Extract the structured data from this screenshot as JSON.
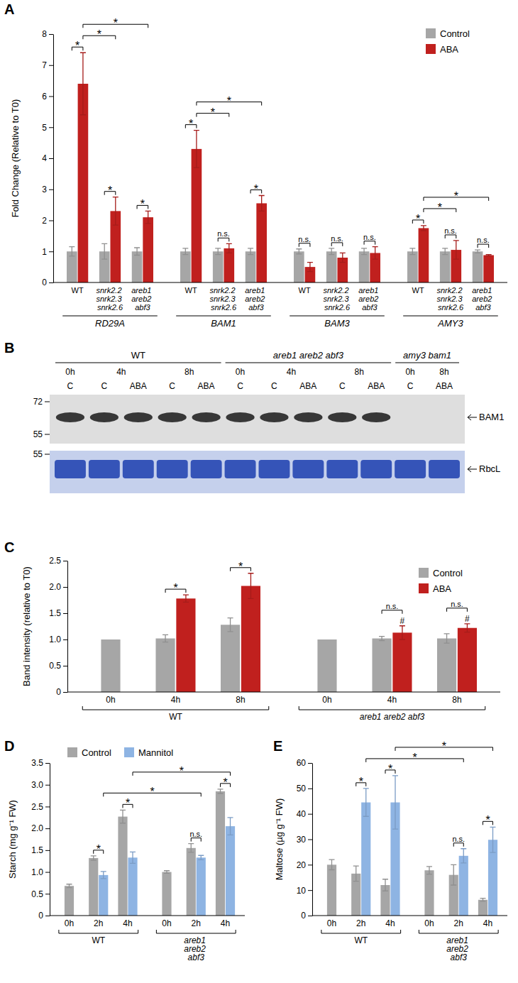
{
  "chart_data": [
    {
      "type": "bar",
      "title": "A",
      "ylabel": "Fold Change (Relative to T0)",
      "categories": [
        "WT",
        "snrk2.2 snrk2.3 snrk2.6",
        "areb1 areb2 abf3",
        "WT",
        "snrk2.2 snrk2.3 snrk2.6",
        "areb1 areb2 abf3",
        "WT",
        "snrk2.2 snrk2.3 snrk2.6",
        "areb1 areb2 abf3",
        "WT",
        "snrk2.2 snrk2.3 snrk2.6",
        "areb1 areb2 abf3"
      ],
      "groups": [
        "RD29A",
        "BAM1",
        "BAM3",
        "AMY3"
      ],
      "series": [
        {
          "name": "Control",
          "color": "#a6a6a6",
          "values": [
            1,
            1,
            1,
            1,
            1,
            1,
            1,
            1,
            1,
            1,
            1,
            1
          ],
          "errors": [
            0.15,
            0.25,
            0.12,
            0.1,
            0.1,
            0.1,
            0.08,
            0.1,
            0.1,
            0.1,
            0.1,
            0.05
          ]
        },
        {
          "name": "ABA",
          "color": "#c0201e",
          "values": [
            6.4,
            2.3,
            2.1,
            4.3,
            1.1,
            2.55,
            0.5,
            0.8,
            0.95,
            1.75,
            1.05,
            0.88
          ],
          "errors": [
            1.0,
            0.45,
            0.2,
            0.6,
            0.15,
            0.25,
            0.15,
            0.15,
            0.2,
            0.08,
            0.3,
            0.02
          ]
        }
      ],
      "ylim": [
        0,
        8
      ],
      "yticks": [
        0,
        1,
        2,
        3,
        4,
        5,
        6,
        7,
        8
      ],
      "legend": "upper right",
      "annotations": [
        {
          "text": "*",
          "from": [
            0,
            0
          ],
          "to": [
            0,
            1
          ]
        },
        {
          "text": "*",
          "from": [
            1,
            0
          ],
          "to": [
            1,
            1
          ]
        },
        {
          "text": "*",
          "from": [
            2,
            0
          ],
          "to": [
            2,
            1
          ]
        },
        {
          "text": "*",
          "from": [
            0,
            1
          ],
          "to": [
            1,
            1
          ]
        },
        {
          "text": "*",
          "from": [
            0,
            1
          ],
          "to": [
            2,
            1
          ]
        },
        {
          "text": "*",
          "from": [
            3,
            0
          ],
          "to": [
            3,
            1
          ]
        },
        {
          "text": "n.s.",
          "from": [
            4,
            0
          ],
          "to": [
            4,
            1
          ]
        },
        {
          "text": "*",
          "from": [
            5,
            0
          ],
          "to": [
            5,
            1
          ]
        },
        {
          "text": "*",
          "from": [
            3,
            1
          ],
          "to": [
            4,
            1
          ]
        },
        {
          "text": "*",
          "from": [
            3,
            1
          ],
          "to": [
            5,
            1
          ]
        },
        {
          "text": "n.s.",
          "from": [
            6,
            0
          ],
          "to": [
            6,
            1
          ]
        },
        {
          "text": "n.s.",
          "from": [
            7,
            0
          ],
          "to": [
            7,
            1
          ]
        },
        {
          "text": "n.s.",
          "from": [
            8,
            0
          ],
          "to": [
            8,
            1
          ]
        },
        {
          "text": "*",
          "from": [
            9,
            0
          ],
          "to": [
            9,
            1
          ]
        },
        {
          "text": "n.s.",
          "from": [
            10,
            0
          ],
          "to": [
            10,
            1
          ]
        },
        {
          "text": "n.s.",
          "from": [
            11,
            0
          ],
          "to": [
            11,
            1
          ]
        },
        {
          "text": "*",
          "from": [
            9,
            1
          ],
          "to": [
            10,
            1
          ]
        },
        {
          "text": "*",
          "from": [
            9,
            1
          ],
          "to": [
            11,
            1
          ]
        }
      ]
    },
    {
      "type": "bar",
      "title": "C",
      "ylabel": "Band intensity (relative to T0)",
      "categories": [
        "0h",
        "4h",
        "8h",
        "0h",
        "4h",
        "8h"
      ],
      "groups": [
        "WT",
        "areb1 areb2 abf3"
      ],
      "series": [
        {
          "name": "Control",
          "color": "#a6a6a6",
          "values": [
            1,
            1.02,
            1.28,
            1,
            1.02,
            1.02
          ],
          "errors": [
            null,
            0.07,
            0.13,
            null,
            0.04,
            0.09
          ]
        },
        {
          "name": "ABA",
          "color": "#c0201e",
          "values": [
            null,
            1.78,
            2.02,
            null,
            1.13,
            1.22
          ],
          "errors": [
            null,
            0.07,
            0.24,
            null,
            0.13,
            0.08
          ]
        }
      ],
      "ylim": [
        0,
        2.5
      ],
      "yticks": [
        0,
        0.5,
        {
          "value": 1,
          "label": "1.0"
        },
        1.5,
        {
          "value": 2,
          "label": "2.0"
        },
        2.5
      ],
      "legend": "upper right",
      "annotations": [
        {
          "text": "*",
          "from": [
            1,
            0
          ],
          "to": [
            1,
            1
          ]
        },
        {
          "text": "*",
          "from": [
            2,
            0
          ],
          "to": [
            2,
            1
          ]
        },
        {
          "text": "n.s.",
          "from": [
            4,
            0
          ],
          "to": [
            4,
            1
          ]
        },
        {
          "text": "n.s.",
          "from": [
            5,
            0
          ],
          "to": [
            5,
            1
          ]
        },
        {
          "text": "#",
          "at": [
            4,
            1
          ]
        },
        {
          "text": "#",
          "at": [
            5,
            1
          ]
        }
      ]
    },
    {
      "type": "bar",
      "title": "D",
      "ylabel": "Starch (mg g⁻¹ FW)",
      "categories": [
        "0h",
        "2h",
        "4h",
        "0h",
        "2h",
        "4h"
      ],
      "groups": [
        "WT",
        "areb1 areb2 abf3"
      ],
      "series": [
        {
          "name": "Control",
          "color": "#a6a6a6",
          "values": [
            0.68,
            1.32,
            2.27,
            1.0,
            1.55,
            2.85
          ],
          "errors": [
            0.04,
            0.05,
            0.15,
            0.03,
            0.1,
            0.05
          ]
        },
        {
          "name": "Mannitol",
          "color": "#8eb4e3",
          "values": [
            null,
            0.93,
            1.33,
            null,
            1.33,
            2.05
          ],
          "errors": [
            null,
            0.08,
            0.13,
            null,
            0.05,
            0.2
          ]
        }
      ],
      "ylim": [
        0,
        3.5
      ],
      "yticks": [
        0,
        0.5,
        {
          "value": 1,
          "label": "1.0"
        },
        1.5,
        {
          "value": 2,
          "label": "2.0"
        },
        2.5,
        {
          "value": 3,
          "label": "3.0"
        },
        3.5
      ],
      "legend": "upper left",
      "annotations": [
        {
          "text": "*",
          "from": [
            1,
            0
          ],
          "to": [
            1,
            1
          ]
        },
        {
          "text": "*",
          "from": [
            2,
            0
          ],
          "to": [
            2,
            1
          ]
        },
        {
          "text": "n.s.",
          "from": [
            4,
            0
          ],
          "to": [
            4,
            1
          ]
        },
        {
          "text": "*",
          "from": [
            5,
            0
          ],
          "to": [
            5,
            1
          ]
        },
        {
          "text": "*",
          "from": [
            1,
            1
          ],
          "to": [
            4,
            1
          ]
        },
        {
          "text": "*",
          "from": [
            2,
            1
          ],
          "to": [
            5,
            1
          ]
        }
      ]
    },
    {
      "type": "bar",
      "title": "E",
      "ylabel": "Maltose (µg g⁻¹ FW)",
      "categories": [
        "0h",
        "2h",
        "4h",
        "0h",
        "2h",
        "4h"
      ],
      "groups": [
        "WT",
        "areb1 areb2 abf3"
      ],
      "series": [
        {
          "name": "Control",
          "color": "#a6a6a6",
          "values": [
            20,
            16.5,
            12,
            17.8,
            16,
            6.2
          ],
          "errors": [
            2,
            3,
            2.3,
            1.5,
            4,
            0.6
          ]
        },
        {
          "name": "Mannitol",
          "color": "#8eb4e3",
          "values": [
            null,
            44.5,
            44.5,
            null,
            23.5,
            29.8
          ],
          "errors": [
            null,
            5.5,
            10.5,
            null,
            2.8,
            5
          ]
        }
      ],
      "ylim": [
        0,
        60
      ],
      "yticks": [
        0,
        10,
        20,
        30,
        40,
        50,
        60
      ],
      "annotations": [
        {
          "text": "*",
          "from": [
            1,
            0
          ],
          "to": [
            1,
            1
          ]
        },
        {
          "text": "*",
          "from": [
            2,
            0
          ],
          "to": [
            2,
            1
          ]
        },
        {
          "text": "n.s.",
          "from": [
            4,
            0
          ],
          "to": [
            4,
            1
          ]
        },
        {
          "text": "*",
          "from": [
            5,
            0
          ],
          "to": [
            5,
            1
          ]
        },
        {
          "text": "*",
          "from": [
            1,
            1
          ],
          "to": [
            4,
            1
          ]
        },
        {
          "text": "*",
          "from": [
            2,
            1
          ],
          "to": [
            5,
            1
          ]
        }
      ]
    }
  ],
  "blot": {
    "title": "B",
    "groups": [
      {
        "label": "WT",
        "band": true,
        "times": [
          {
            "label": "0h",
            "lanes": [
              "C"
            ]
          },
          {
            "label": "4h",
            "lanes": [
              "C",
              "ABA"
            ]
          },
          {
            "label": "8h",
            "lanes": [
              "C",
              "ABA"
            ]
          }
        ]
      },
      {
        "label": "areb1 areb2 abf3",
        "band": true,
        "times": [
          {
            "label": "0h",
            "lanes": [
              "C"
            ]
          },
          {
            "label": "4h",
            "lanes": [
              "C",
              "ABA"
            ]
          },
          {
            "label": "8h",
            "lanes": [
              "C",
              "ABA"
            ]
          }
        ]
      },
      {
        "label": "amy3 bam1",
        "band": false,
        "times": [
          {
            "label": "0h",
            "lanes": [
              "C"
            ]
          },
          {
            "label": "8h",
            "lanes": [
              "ABA"
            ]
          }
        ]
      }
    ],
    "upper": {
      "label": "BAM1",
      "markers": [
        72,
        55
      ]
    },
    "lower": {
      "label": "RbcL",
      "markers": [
        55
      ]
    }
  }
}
